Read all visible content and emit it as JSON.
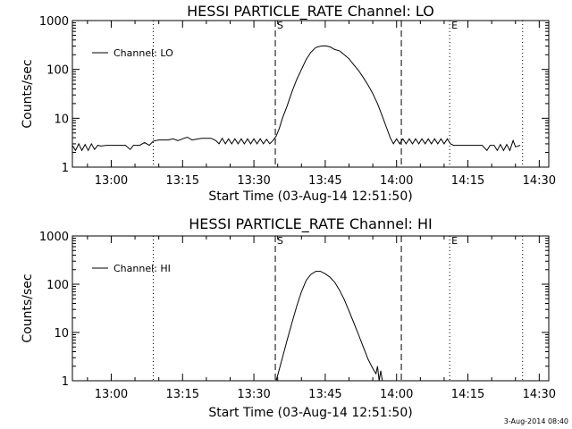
{
  "chart_data": [
    {
      "type": "line",
      "title": "HESSI PARTICLE_RATE Channel: LO",
      "xlabel": "Start Time (03-Aug-14 12:51:50)",
      "ylabel": "Counts/sec",
      "yscale": "log",
      "ylim": [
        1,
        1000
      ],
      "xlim": [
        "12:51:50",
        "14:32:00"
      ],
      "x_ticks": [
        "13:00",
        "13:15",
        "13:30",
        "13:45",
        "14:00",
        "14:15",
        "14:30"
      ],
      "y_ticks": [
        "1",
        "10",
        "100",
        "1000"
      ],
      "legend": {
        "position": "top-left",
        "label": "Channel: LO"
      },
      "markers": [
        {
          "label": "S",
          "time": "13:34:30"
        },
        {
          "label": "E",
          "time": "14:11:10"
        }
      ],
      "dashed_lines": [
        "13:34:30",
        "14:01:00"
      ],
      "dotted_lines": [
        "13:08:50",
        "14:11:10",
        "14:26:30"
      ],
      "series": [
        {
          "name": "Channel: LO",
          "points": [
            [
              "12:51:50",
              2.8
            ],
            [
              "12:52:30",
              2.2
            ],
            [
              "12:53:10",
              3.0
            ],
            [
              "12:53:50",
              2.2
            ],
            [
              "12:54:30",
              2.9
            ],
            [
              "12:55:10",
              2.2
            ],
            [
              "12:55:50",
              3.0
            ],
            [
              "12:56:30",
              2.3
            ],
            [
              "12:57:10",
              2.8
            ],
            [
              "12:57:50",
              2.7
            ],
            [
              "12:59:00",
              2.8
            ],
            [
              "13:01:00",
              2.8
            ],
            [
              "13:03:00",
              2.8
            ],
            [
              "13:04:00",
              2.3
            ],
            [
              "13:04:40",
              2.8
            ],
            [
              "13:06:00",
              2.8
            ],
            [
              "13:07:00",
              3.2
            ],
            [
              "13:08:00",
              2.8
            ],
            [
              "13:08:50",
              3.4
            ],
            [
              "13:10:00",
              3.6
            ],
            [
              "13:12:00",
              3.6
            ],
            [
              "13:13:00",
              3.8
            ],
            [
              "13:14:00",
              3.5
            ],
            [
              "13:15:00",
              3.8
            ],
            [
              "13:16:00",
              4.1
            ],
            [
              "13:17:00",
              3.6
            ],
            [
              "13:19:00",
              3.9
            ],
            [
              "13:21:00",
              3.9
            ],
            [
              "13:22:00",
              3.5
            ],
            [
              "13:22:40",
              3.0
            ],
            [
              "13:23:20",
              3.9
            ],
            [
              "13:24:00",
              3.0
            ],
            [
              "13:24:40",
              3.8
            ],
            [
              "13:25:20",
              3.0
            ],
            [
              "13:26:00",
              3.8
            ],
            [
              "13:26:40",
              3.0
            ],
            [
              "13:27:20",
              3.8
            ],
            [
              "13:28:00",
              3.0
            ],
            [
              "13:28:40",
              3.8
            ],
            [
              "13:29:20",
              3.0
            ],
            [
              "13:30:00",
              3.8
            ],
            [
              "13:30:40",
              3.0
            ],
            [
              "13:31:20",
              3.8
            ],
            [
              "13:32:00",
              3.0
            ],
            [
              "13:32:40",
              3.7
            ],
            [
              "13:33:20",
              3.0
            ],
            [
              "13:34:00",
              3.5
            ],
            [
              "13:34:40",
              4.3
            ],
            [
              "13:35:20",
              6.2
            ],
            [
              "13:36:00",
              10
            ],
            [
              "13:37:00",
              18
            ],
            [
              "13:38:00",
              35
            ],
            [
              "13:39:00",
              62
            ],
            [
              "13:40:00",
              100
            ],
            [
              "13:41:00",
              160
            ],
            [
              "13:42:00",
              225
            ],
            [
              "13:43:00",
              280
            ],
            [
              "13:44:00",
              300
            ],
            [
              "13:45:00",
              303
            ],
            [
              "13:46:00",
              290
            ],
            [
              "13:47:00",
              255
            ],
            [
              "13:48:00",
              240
            ],
            [
              "13:49:00",
              200
            ],
            [
              "13:50:00",
              165
            ],
            [
              "13:51:00",
              125
            ],
            [
              "13:52:00",
              95
            ],
            [
              "13:53:00",
              68
            ],
            [
              "13:54:00",
              48
            ],
            [
              "13:55:00",
              32
            ],
            [
              "13:56:00",
              20
            ],
            [
              "13:57:00",
              11
            ],
            [
              "13:58:00",
              6
            ],
            [
              "13:58:40",
              4
            ],
            [
              "13:59:20",
              3.0
            ],
            [
              "14:00:00",
              3.8
            ],
            [
              "14:00:40",
              3.0
            ],
            [
              "14:01:20",
              3.8
            ],
            [
              "14:02:00",
              3.0
            ],
            [
              "14:02:40",
              3.8
            ],
            [
              "14:03:20",
              3.0
            ],
            [
              "14:04:00",
              3.8
            ],
            [
              "14:04:40",
              3.0
            ],
            [
              "14:05:20",
              3.8
            ],
            [
              "14:06:00",
              3.0
            ],
            [
              "14:06:40",
              3.8
            ],
            [
              "14:07:20",
              3.0
            ],
            [
              "14:08:00",
              3.8
            ],
            [
              "14:08:40",
              3.0
            ],
            [
              "14:09:20",
              3.8
            ],
            [
              "14:10:00",
              3.0
            ],
            [
              "14:10:40",
              3.8
            ],
            [
              "14:11:20",
              3.0
            ],
            [
              "14:12:00",
              2.8
            ],
            [
              "14:14:00",
              2.8
            ],
            [
              "14:16:00",
              2.8
            ],
            [
              "14:18:00",
              2.8
            ],
            [
              "14:19:00",
              2.2
            ],
            [
              "14:19:40",
              2.8
            ],
            [
              "14:20:30",
              2.8
            ],
            [
              "14:21:10",
              2.2
            ],
            [
              "14:21:50",
              2.9
            ],
            [
              "14:22:30",
              2.2
            ],
            [
              "14:23:10",
              2.9
            ],
            [
              "14:23:50",
              2.2
            ],
            [
              "14:24:30",
              3.5
            ],
            [
              "14:25:00",
              2.6
            ],
            [
              "14:26:00",
              2.8
            ]
          ]
        }
      ]
    },
    {
      "type": "line",
      "title": "HESSI PARTICLE_RATE Channel: HI",
      "xlabel": "Start Time (03-Aug-14 12:51:50)",
      "ylabel": "Counts/sec",
      "yscale": "log",
      "ylim": [
        1,
        1000
      ],
      "xlim": [
        "12:51:50",
        "14:32:00"
      ],
      "x_ticks": [
        "13:00",
        "13:15",
        "13:30",
        "13:45",
        "14:00",
        "14:15",
        "14:30"
      ],
      "y_ticks": [
        "1",
        "10",
        "100",
        "1000"
      ],
      "legend": {
        "position": "top-left",
        "label": "Channel: HI"
      },
      "markers": [
        {
          "label": "S",
          "time": "13:34:30"
        },
        {
          "label": "E",
          "time": "14:11:10"
        }
      ],
      "dashed_lines": [
        "13:34:30",
        "14:01:00"
      ],
      "dotted_lines": [
        "13:08:50",
        "14:11:10",
        "14:26:30"
      ],
      "series": [
        {
          "name": "Channel: HI",
          "points": [
            [
              "13:34:40",
              1.0
            ],
            [
              "13:35:00",
              1.3
            ],
            [
              "13:36:00",
              3
            ],
            [
              "13:37:00",
              7
            ],
            [
              "13:38:00",
              16
            ],
            [
              "13:39:00",
              35
            ],
            [
              "13:40:00",
              70
            ],
            [
              "13:41:00",
              120
            ],
            [
              "13:42:00",
              160
            ],
            [
              "13:43:00",
              185
            ],
            [
              "13:44:00",
              185
            ],
            [
              "13:45:00",
              165
            ],
            [
              "13:46:00",
              140
            ],
            [
              "13:47:00",
              110
            ],
            [
              "13:48:00",
              75
            ],
            [
              "13:49:00",
              48
            ],
            [
              "13:50:00",
              28
            ],
            [
              "13:51:00",
              16
            ],
            [
              "13:52:00",
              9
            ],
            [
              "13:53:00",
              5
            ],
            [
              "13:54:00",
              2.8
            ],
            [
              "13:55:00",
              1.8
            ],
            [
              "13:55:40",
              1.4
            ],
            [
              "13:56:00",
              2.0
            ],
            [
              "13:56:20",
              1.0
            ],
            [
              "13:56:40",
              1.6
            ],
            [
              "13:57:00",
              1.0
            ]
          ]
        }
      ]
    }
  ],
  "timestamp": "3-Aug-2014 08:40"
}
